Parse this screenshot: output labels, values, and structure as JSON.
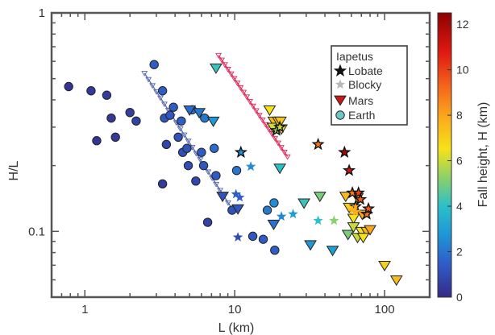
{
  "chart_data": {
    "type": "scatter",
    "title": "",
    "xlabel": "L (km)",
    "ylabel": "H/L",
    "xscale": "log",
    "yscale": "log",
    "xlim": [
      0.6,
      200
    ],
    "ylim": [
      0.05,
      1
    ],
    "x_ticks": [
      {
        "v": 1,
        "label": "1"
      },
      {
        "v": 10,
        "label": "10"
      },
      {
        "v": 100,
        "label": "100"
      }
    ],
    "y_ticks": [
      {
        "v": 0.1,
        "label": "0.1"
      },
      {
        "v": 1,
        "label": "1"
      }
    ],
    "grid": false,
    "legend": {
      "position": "top-right",
      "title": "Iapetus",
      "entries": [
        {
          "label": "Lobate",
          "marker": "star",
          "color": "#111111"
        },
        {
          "label": "Blocky",
          "marker": "star",
          "color": "#b8b8b8"
        },
        {
          "label": "Mars",
          "marker": "triangle-down",
          "color": "#c81818"
        },
        {
          "label": "Earth",
          "marker": "circle",
          "color": "#6cc8c8"
        }
      ]
    },
    "colorbar": {
      "label": "Fall height, H (km)",
      "range": [
        0,
        12.5
      ],
      "ticks": [
        "0",
        "2",
        "4",
        "6",
        "8",
        "10",
        "12"
      ],
      "colormap": "parula-jet-like"
    },
    "series": [
      {
        "name": "Earth",
        "marker": "circle",
        "points": [
          {
            "x": 0.78,
            "y": 0.46,
            "h": 0.3
          },
          {
            "x": 1.1,
            "y": 0.44,
            "h": 0.4
          },
          {
            "x": 1.4,
            "y": 0.42,
            "h": 0.5
          },
          {
            "x": 1.2,
            "y": 0.26,
            "h": 0.3
          },
          {
            "x": 1.5,
            "y": 0.33,
            "h": 0.4
          },
          {
            "x": 1.6,
            "y": 0.27,
            "h": 0.4
          },
          {
            "x": 2.0,
            "y": 0.35,
            "h": 0.6
          },
          {
            "x": 2.2,
            "y": 0.32,
            "h": 0.7
          },
          {
            "x": 2.9,
            "y": 0.58,
            "h": 1.5
          },
          {
            "x": 3.3,
            "y": 0.44,
            "h": 1.4
          },
          {
            "x": 3.4,
            "y": 0.33,
            "h": 1.2
          },
          {
            "x": 3.5,
            "y": 0.25,
            "h": 0.8
          },
          {
            "x": 3.7,
            "y": 0.34,
            "h": 1.3
          },
          {
            "x": 3.9,
            "y": 0.37,
            "h": 1.4
          },
          {
            "x": 3.3,
            "y": 0.165,
            "h": 0.5
          },
          {
            "x": 4.2,
            "y": 0.27,
            "h": 1.2
          },
          {
            "x": 4.4,
            "y": 0.32,
            "h": 1.5
          },
          {
            "x": 4.5,
            "y": 0.23,
            "h": 1.1
          },
          {
            "x": 4.8,
            "y": 0.24,
            "h": 1.2
          },
          {
            "x": 4.9,
            "y": 0.2,
            "h": 1.0
          },
          {
            "x": 5.2,
            "y": 0.36,
            "h": 1.9
          },
          {
            "x": 5.5,
            "y": 0.17,
            "h": 0.9
          },
          {
            "x": 6.0,
            "y": 0.23,
            "h": 1.4
          },
          {
            "x": 6.2,
            "y": 0.2,
            "h": 1.3
          },
          {
            "x": 6.3,
            "y": 0.33,
            "h": 2.1
          },
          {
            "x": 6.6,
            "y": 0.11,
            "h": 0.7
          },
          {
            "x": 7.3,
            "y": 0.24,
            "h": 1.8
          },
          {
            "x": 7.5,
            "y": 0.18,
            "h": 1.4
          },
          {
            "x": 9.6,
            "y": 0.125,
            "h": 1.2
          },
          {
            "x": 10.3,
            "y": 0.19,
            "h": 2.0
          },
          {
            "x": 13.2,
            "y": 0.095,
            "h": 1.3
          },
          {
            "x": 15.5,
            "y": 0.092,
            "h": 1.4
          },
          {
            "x": 18.5,
            "y": 0.082,
            "h": 1.5
          },
          {
            "x": 16.5,
            "y": 0.125,
            "h": 2.1
          },
          {
            "x": 18.3,
            "y": 0.135,
            "h": 2.5
          }
        ]
      },
      {
        "name": "Mars",
        "marker": "triangle-down",
        "points": [
          {
            "x": 7.5,
            "y": 0.56,
            "h": 4.2
          },
          {
            "x": 5.0,
            "y": 0.36,
            "h": 1.8
          },
          {
            "x": 5.8,
            "y": 0.35,
            "h": 2.1
          },
          {
            "x": 7.2,
            "y": 0.32,
            "h": 2.8
          },
          {
            "x": 8.3,
            "y": 0.145,
            "h": 1.2
          },
          {
            "x": 10.5,
            "y": 0.127,
            "h": 1.3
          },
          {
            "x": 17.1,
            "y": 0.36,
            "h": 6.5
          },
          {
            "x": 18.2,
            "y": 0.32,
            "h": 7.5
          },
          {
            "x": 18.0,
            "y": 0.3,
            "h": 6.0
          },
          {
            "x": 19.5,
            "y": 0.32,
            "h": 7.0
          },
          {
            "x": 20.2,
            "y": 0.32,
            "h": 7.2
          },
          {
            "x": 20.5,
            "y": 0.295,
            "h": 6.5
          },
          {
            "x": 20.0,
            "y": 0.195,
            "h": 4.0
          },
          {
            "x": 18.2,
            "y": 0.108,
            "h": 2.0
          },
          {
            "x": 29.0,
            "y": 0.135,
            "h": 4.2
          },
          {
            "x": 37.0,
            "y": 0.145,
            "h": 5.0
          },
          {
            "x": 32.0,
            "y": 0.087,
            "h": 2.8
          },
          {
            "x": 45.0,
            "y": 0.082,
            "h": 3.0
          },
          {
            "x": 55.0,
            "y": 0.145,
            "h": 7.5
          },
          {
            "x": 58.0,
            "y": 0.129,
            "h": 7.0
          },
          {
            "x": 62.0,
            "y": 0.115,
            "h": 6.5
          },
          {
            "x": 66.0,
            "y": 0.143,
            "h": 8.5
          },
          {
            "x": 71.0,
            "y": 0.12,
            "h": 8.0
          },
          {
            "x": 57.0,
            "y": 0.097,
            "h": 5.0
          },
          {
            "x": 62.0,
            "y": 0.105,
            "h": 6.0
          },
          {
            "x": 70.0,
            "y": 0.1,
            "h": 6.5
          },
          {
            "x": 76.0,
            "y": 0.1,
            "h": 7.5
          },
          {
            "x": 80.0,
            "y": 0.102,
            "h": 8.0
          },
          {
            "x": 66.0,
            "y": 0.094,
            "h": 6.0
          },
          {
            "x": 72.0,
            "y": 0.094,
            "h": 6.5
          },
          {
            "x": 100.0,
            "y": 0.07,
            "h": 7.0
          },
          {
            "x": 120.0,
            "y": 0.06,
            "h": 7.5
          }
        ]
      },
      {
        "name": "Lobate",
        "marker": "star",
        "points": [
          {
            "x": 11.0,
            "y": 0.23,
            "h": 2.6
          },
          {
            "x": 19.0,
            "y": 0.29,
            "h": 5.5
          },
          {
            "x": 20.0,
            "y": 0.3,
            "h": 6.0
          },
          {
            "x": 36.0,
            "y": 0.25,
            "h": 9.0
          },
          {
            "x": 54.0,
            "y": 0.23,
            "h": 12.0
          },
          {
            "x": 58.0,
            "y": 0.19,
            "h": 11.0
          },
          {
            "x": 61.0,
            "y": 0.15,
            "h": 9.0
          },
          {
            "x": 64.0,
            "y": 0.13,
            "h": 8.0
          },
          {
            "x": 67.0,
            "y": 0.15,
            "h": 10.0
          },
          {
            "x": 69.0,
            "y": 0.14,
            "h": 9.5
          },
          {
            "x": 76.0,
            "y": 0.12,
            "h": 9.0
          },
          {
            "x": 78.0,
            "y": 0.127,
            "h": 9.5
          }
        ]
      },
      {
        "name": "Blocky",
        "marker": "star",
        "points": [
          {
            "x": 10.5,
            "y": 0.094,
            "h": 1.0
          },
          {
            "x": 10.2,
            "y": 0.148,
            "h": 1.5
          },
          {
            "x": 10.8,
            "y": 0.143,
            "h": 1.5
          },
          {
            "x": 12.8,
            "y": 0.198,
            "h": 2.5
          },
          {
            "x": 20.5,
            "y": 0.117,
            "h": 2.4
          },
          {
            "x": 24.5,
            "y": 0.12,
            "h": 2.9
          },
          {
            "x": 36.0,
            "y": 0.112,
            "h": 4.0
          },
          {
            "x": 46.0,
            "y": 0.112,
            "h": 5.2
          },
          {
            "x": 61.0,
            "y": 0.125,
            "h": 7.6
          },
          {
            "x": 64.0,
            "y": 0.123,
            "h": 7.8
          }
        ]
      },
      {
        "name": "",
        "marker": "fit-line",
        "color": "#5466b0",
        "points": [
          {
            "x": 2.5,
            "y": 0.53
          },
          {
            "x": 9.6,
            "y": 0.127
          }
        ]
      },
      {
        "name": "",
        "marker": "fit-line",
        "color": "#e0285a",
        "points": [
          {
            "x": 7.8,
            "y": 0.64
          },
          {
            "x": 22.5,
            "y": 0.22
          }
        ]
      }
    ]
  }
}
